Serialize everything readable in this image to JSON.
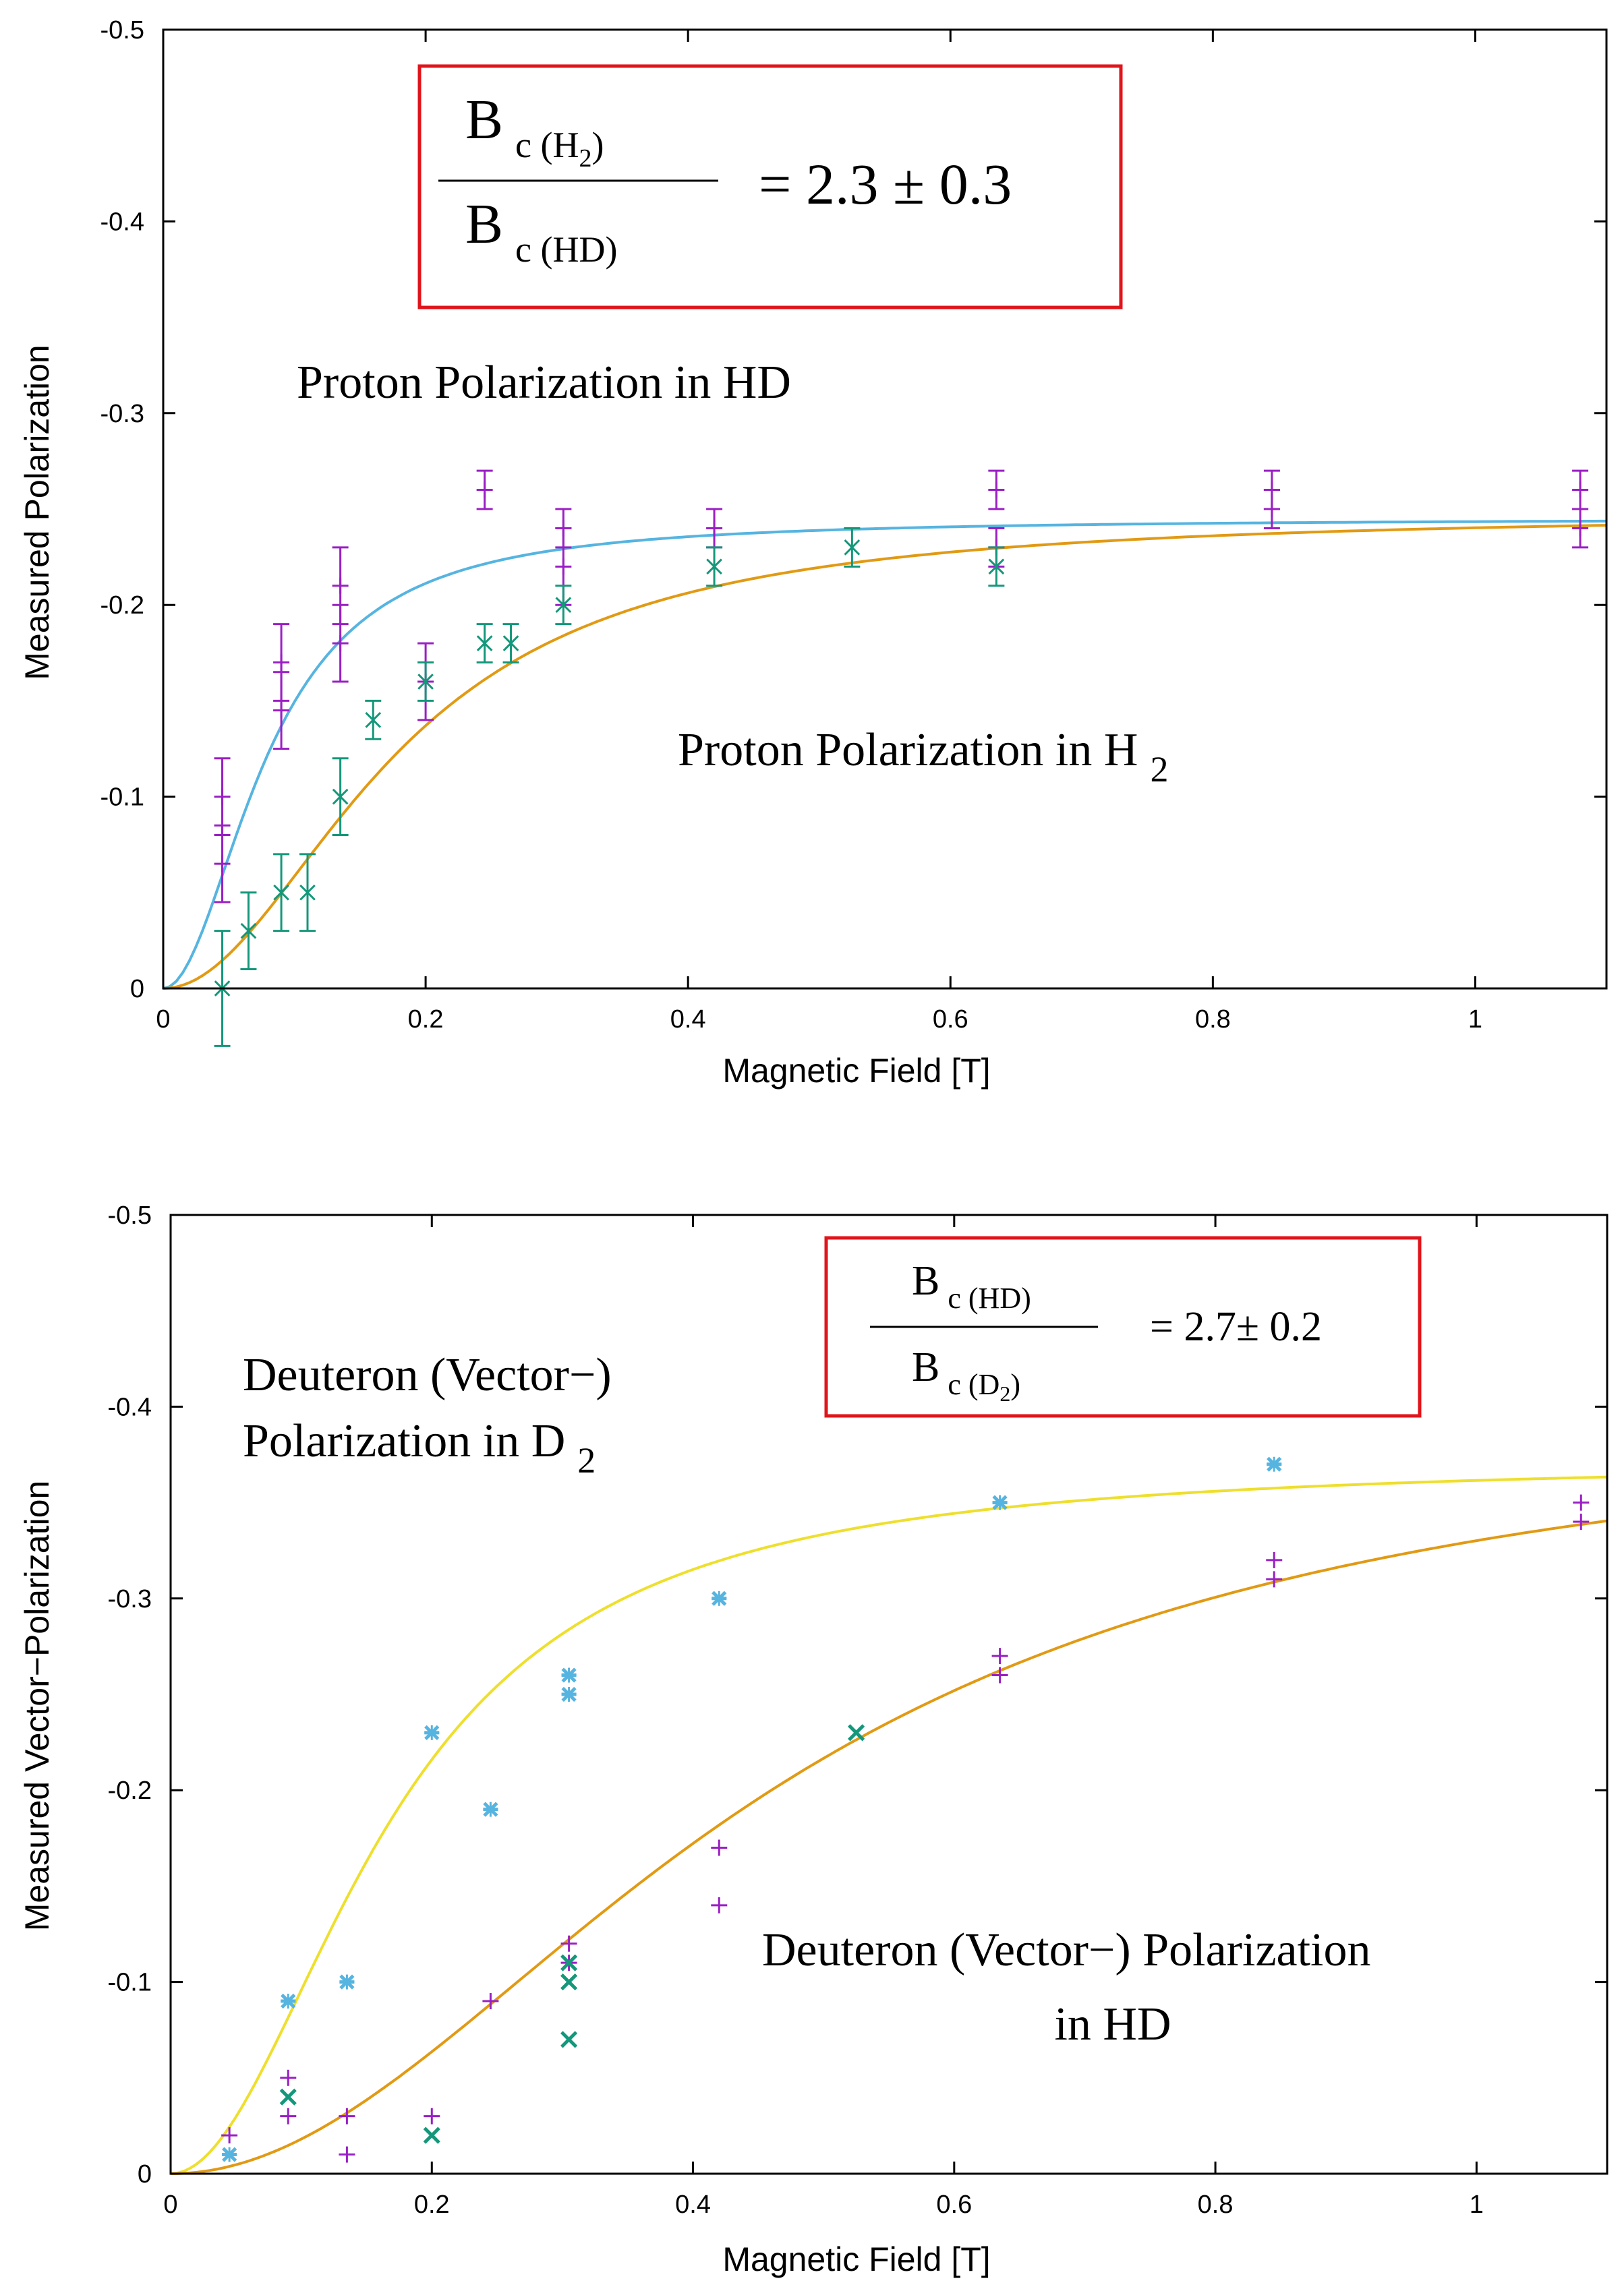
{
  "chart_data": [
    {
      "type": "scatter",
      "xlabel": "Magnetic Field [T]",
      "ylabel": "Measured Polarization",
      "xlim": [
        0,
        1.1
      ],
      "ylim": [
        0,
        -0.5
      ],
      "y_axis": "inverted (0 at bottom, -0.5 at top)",
      "x_ticks": [
        "0",
        "0.2",
        "0.4",
        "0.6",
        "0.8",
        "1"
      ],
      "y_ticks": [
        "0",
        "-0.1",
        "-0.2",
        "-0.3",
        "-0.4",
        "-0.5"
      ],
      "grid": false,
      "ratio_box": {
        "num_main": "B",
        "num_sub": "c (H",
        "num_subsub": "2",
        "num_close": ")",
        "den_main": "B",
        "den_sub": "c (HD)",
        "value": "= 2.3 ± 0.3"
      },
      "annotations": [
        {
          "id": "hd",
          "text": "Proton Polarization in HD"
        },
        {
          "id": "h2_main",
          "text": "Proton Polarization in H"
        },
        {
          "id": "h2_sub",
          "text": "2"
        }
      ],
      "series": [
        {
          "id": "hd_points",
          "color": "#9a1fc4",
          "marker": "plus",
          "points": [
            {
              "x": 0.045,
              "y": -0.1,
              "err": 0.02
            },
            {
              "x": 0.045,
              "y": -0.065,
              "err": 0.02
            },
            {
              "x": 0.09,
              "y": -0.17,
              "err": 0.02
            },
            {
              "x": 0.09,
              "y": -0.145,
              "err": 0.02
            },
            {
              "x": 0.135,
              "y": -0.21,
              "err": 0.02
            },
            {
              "x": 0.135,
              "y": -0.18,
              "err": 0.02
            },
            {
              "x": 0.2,
              "y": -0.16,
              "err": 0.02
            },
            {
              "x": 0.245,
              "y": -0.26,
              "err": 0.01
            },
            {
              "x": 0.305,
              "y": -0.24,
              "err": 0.01
            },
            {
              "x": 0.305,
              "y": -0.22,
              "err": 0.02
            },
            {
              "x": 0.42,
              "y": -0.24,
              "err": 0.01
            },
            {
              "x": 0.635,
              "y": -0.26,
              "err": 0.01
            },
            {
              "x": 0.635,
              "y": -0.23,
              "err": 0.01
            },
            {
              "x": 0.845,
              "y": -0.26,
              "err": 0.01
            },
            {
              "x": 0.845,
              "y": -0.25,
              "err": 0.01
            },
            {
              "x": 1.08,
              "y": -0.26,
              "err": 0.01
            },
            {
              "x": 1.08,
              "y": -0.24,
              "err": 0.01
            }
          ]
        },
        {
          "id": "h2_points",
          "color": "#14977a",
          "marker": "cross",
          "points": [
            {
              "x": 0.045,
              "y": 0.0,
              "err": 0.03
            },
            {
              "x": 0.065,
              "y": -0.03,
              "err": 0.02
            },
            {
              "x": 0.09,
              "y": -0.05,
              "err": 0.02
            },
            {
              "x": 0.11,
              "y": -0.05,
              "err": 0.02
            },
            {
              "x": 0.135,
              "y": -0.1,
              "err": 0.02
            },
            {
              "x": 0.16,
              "y": -0.14,
              "err": 0.01
            },
            {
              "x": 0.2,
              "y": -0.16,
              "err": 0.01
            },
            {
              "x": 0.245,
              "y": -0.18,
              "err": 0.01
            },
            {
              "x": 0.265,
              "y": -0.18,
              "err": 0.01
            },
            {
              "x": 0.305,
              "y": -0.2,
              "err": 0.01
            },
            {
              "x": 0.42,
              "y": -0.22,
              "err": 0.01
            },
            {
              "x": 0.525,
              "y": -0.23,
              "err": 0.01
            },
            {
              "x": 0.635,
              "y": -0.22,
              "err": 0.01
            }
          ]
        }
      ],
      "fits": [
        {
          "id": "hd_fit",
          "color": "#56b4e0",
          "ymax": -0.245,
          "bc": 0.08
        },
        {
          "id": "h2_fit",
          "color": "#e19a13",
          "ymax": -0.248,
          "bc": 0.18
        }
      ]
    },
    {
      "type": "scatter",
      "xlabel": "Magnetic Field [T]",
      "ylabel": "Measured Vector−Polarization",
      "xlim": [
        0,
        1.1
      ],
      "ylim": [
        0,
        -0.5
      ],
      "y_axis": "inverted (0 at bottom, -0.5 at top)",
      "x_ticks": [
        "0",
        "0.2",
        "0.4",
        "0.6",
        "0.8",
        "1"
      ],
      "y_ticks": [
        "0",
        "-0.1",
        "-0.2",
        "-0.3",
        "-0.4",
        "-0.5"
      ],
      "grid": false,
      "ratio_box": {
        "num_main": "B",
        "num_sub": "c (HD)",
        "den_main": "B",
        "den_sub": "c (D",
        "den_subsub": "2",
        "den_close": ")",
        "value": "= 2.7± 0.2"
      },
      "annotations": [
        {
          "id": "d2_line1",
          "text": "Deuteron (Vector−)"
        },
        {
          "id": "d2_line2",
          "text": "Polarization in D"
        },
        {
          "id": "d2_sub",
          "text": "2"
        },
        {
          "id": "hd_line1",
          "text": "Deuteron (Vector−) Polarization"
        },
        {
          "id": "hd_line2",
          "text": "in HD"
        }
      ],
      "series": [
        {
          "id": "d2_points",
          "color": "#56b4e0",
          "marker": "star",
          "points": [
            {
              "x": 0.045,
              "y": -0.01
            },
            {
              "x": 0.09,
              "y": -0.09
            },
            {
              "x": 0.135,
              "y": -0.1
            },
            {
              "x": 0.2,
              "y": -0.23
            },
            {
              "x": 0.245,
              "y": -0.19
            },
            {
              "x": 0.305,
              "y": -0.26
            },
            {
              "x": 0.305,
              "y": -0.25
            },
            {
              "x": 0.42,
              "y": -0.3
            },
            {
              "x": 0.635,
              "y": -0.35
            },
            {
              "x": 0.845,
              "y": -0.37
            }
          ]
        },
        {
          "id": "hd_purple_points",
          "color": "#9a1fc4",
          "marker": "plus",
          "points": [
            {
              "x": 0.045,
              "y": -0.02
            },
            {
              "x": 0.09,
              "y": -0.05
            },
            {
              "x": 0.09,
              "y": -0.03
            },
            {
              "x": 0.135,
              "y": -0.03
            },
            {
              "x": 0.135,
              "y": -0.01
            },
            {
              "x": 0.2,
              "y": -0.03
            },
            {
              "x": 0.245,
              "y": -0.09
            },
            {
              "x": 0.305,
              "y": -0.12
            },
            {
              "x": 0.305,
              "y": -0.11
            },
            {
              "x": 0.42,
              "y": -0.17
            },
            {
              "x": 0.42,
              "y": -0.14
            },
            {
              "x": 0.635,
              "y": -0.27
            },
            {
              "x": 0.635,
              "y": -0.26
            },
            {
              "x": 0.845,
              "y": -0.32
            },
            {
              "x": 0.845,
              "y": -0.31
            },
            {
              "x": 1.08,
              "y": -0.35
            },
            {
              "x": 1.08,
              "y": -0.34
            }
          ]
        },
        {
          "id": "hd_green_points",
          "color": "#14977a",
          "marker": "cross",
          "points": [
            {
              "x": 0.09,
              "y": -0.04
            },
            {
              "x": 0.2,
              "y": -0.02
            },
            {
              "x": 0.305,
              "y": -0.11
            },
            {
              "x": 0.305,
              "y": -0.1
            },
            {
              "x": 0.305,
              "y": -0.07
            },
            {
              "x": 0.525,
              "y": -0.23
            }
          ]
        }
      ],
      "fits": [
        {
          "id": "d2_fit",
          "color": "#eedf2d",
          "ymax": -0.372,
          "bc": 0.17
        },
        {
          "id": "hd_fit",
          "color": "#e19a13",
          "ymax": -0.4,
          "bc": 0.46
        }
      ]
    }
  ]
}
